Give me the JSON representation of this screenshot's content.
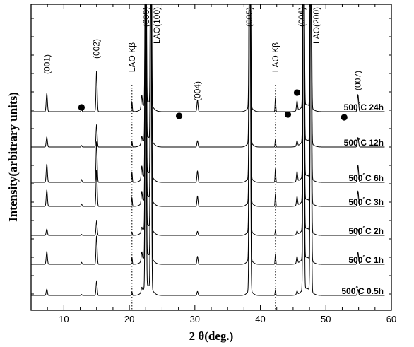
{
  "chart_data": {
    "type": "line",
    "xlabel": "2 θ(deg.)",
    "ylabel": "Intensity(arbitrary units)",
    "xlim": [
      5,
      60
    ],
    "x_ticks": [
      10,
      20,
      30,
      40,
      50,
      60
    ],
    "y_ticks_visible": false,
    "grid": false,
    "series": [
      {
        "name": "500°C 24h",
        "label_html": [
          "500",
          "°",
          "C 24h"
        ]
      },
      {
        "name": "500°C 12h",
        "label_html": [
          "500",
          "°",
          "C 12h"
        ]
      },
      {
        "name": "500°C 6h",
        "label_html": [
          "500",
          "°",
          "C 6h"
        ]
      },
      {
        "name": "500°C 3h",
        "label_html": [
          "500",
          "°",
          "C 3h"
        ]
      },
      {
        "name": "500°C 2h",
        "label_html": [
          "500",
          "°",
          "C 2h"
        ]
      },
      {
        "name": "500°C 1h",
        "label_html": [
          "500",
          "°",
          "C 1h"
        ]
      },
      {
        "name": "500°C 0.5h",
        "label_html": [
          "500",
          "°",
          "C 0.5h"
        ]
      }
    ],
    "peaks": [
      {
        "x": 7.4,
        "label": "(001)"
      },
      {
        "x": 15.0,
        "label": "(002)"
      },
      {
        "x": 22.6,
        "label": "(003)"
      },
      {
        "x": 30.4,
        "label": "(004)"
      },
      {
        "x": 38.3,
        "label": "(005)"
      },
      {
        "x": 46.3,
        "label": "(006)"
      },
      {
        "x": 54.9,
        "label": "(007)"
      }
    ],
    "substrate_peaks": [
      {
        "x": 23.2,
        "label": "LAO(100)"
      },
      {
        "x": 47.6,
        "label": "LAO(200)"
      }
    ],
    "kbeta_lines": [
      {
        "x": 20.4,
        "label": "LAO Kβ"
      },
      {
        "x": 42.3,
        "label": "LAO Kβ"
      }
    ],
    "impurity_markers": [
      12.7,
      27.6,
      44.2,
      45.6,
      52.8
    ]
  }
}
